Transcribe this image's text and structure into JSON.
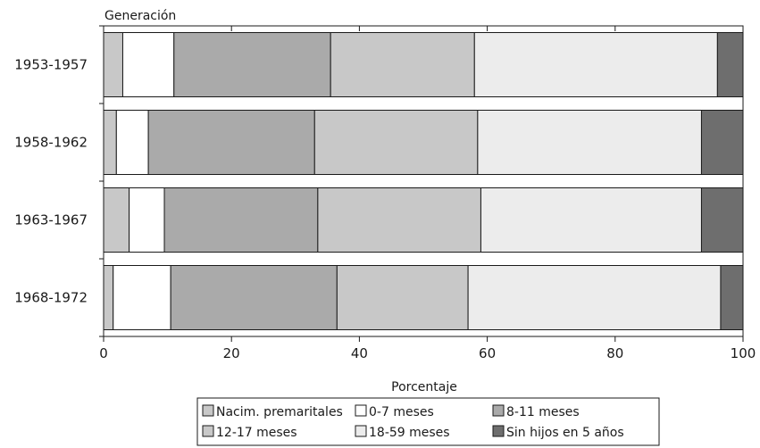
{
  "chart_data": {
    "type": "bar",
    "orientation": "horizontal",
    "stacked": true,
    "ylabel": "Generación",
    "xlabel": "Porcentaje",
    "xlim": [
      0,
      100
    ],
    "xticks": [
      0,
      20,
      40,
      60,
      80,
      100
    ],
    "categories": [
      "1953-1957",
      "1958-1962",
      "1963-1967",
      "1968-1972"
    ],
    "series": [
      {
        "name": "Nacim. premaritales",
        "color": "#c8c8c8",
        "values": [
          3.0,
          2.0,
          4.0,
          1.5
        ]
      },
      {
        "name": "0-7 meses",
        "color": "#ffffff",
        "values": [
          8.0,
          5.0,
          5.5,
          9.0
        ]
      },
      {
        "name": "8-11 meses",
        "color": "#aaaaaa",
        "values": [
          24.5,
          26.0,
          24.0,
          26.0
        ]
      },
      {
        "name": "12-17 meses",
        "color": "#c8c8c8",
        "values": [
          22.5,
          25.5,
          25.5,
          20.5
        ]
      },
      {
        "name": "18-59 meses",
        "color": "#ececec",
        "values": [
          38.0,
          35.0,
          34.5,
          39.5
        ]
      },
      {
        "name": "Sin hijos en 5 años",
        "color": "#6e6e6e",
        "values": [
          4.0,
          6.5,
          6.5,
          3.5
        ]
      }
    ],
    "legend_position": "bottom",
    "grid": false
  }
}
